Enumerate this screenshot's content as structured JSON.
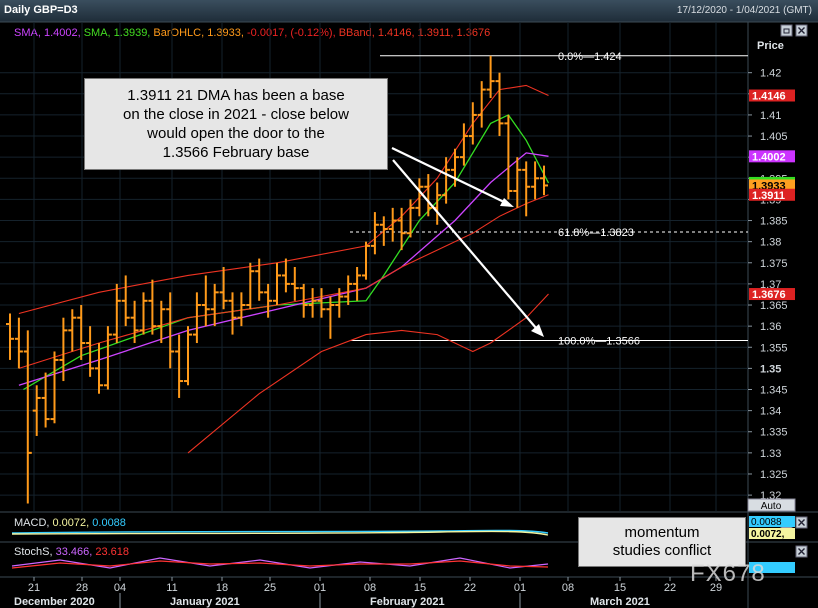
{
  "window": {
    "title": "Daily GBP=D3",
    "date_range": "17/12/2020 - 1/04/2021 (GMT)",
    "auto_label": "Auto"
  },
  "legend": [
    {
      "text": "SMA, 1.4002,",
      "color": "#cc44ff"
    },
    {
      "text": "SMA, 1.3939,",
      "color": "#44dd22"
    },
    {
      "text": "BarOHLC, 1.3933,",
      "color": "#ff9a1a"
    },
    {
      "text": "-0.0017, (-0.12%),",
      "color": "#ee2222"
    },
    {
      "text": "BBand, 1.4146, 1.3911, 1.3676",
      "color": "#ee3322"
    }
  ],
  "callouts": {
    "main_lines": [
      "1.3911 21 DMA has been a base",
      "on the close in 2021 - close below",
      "would open the door to the",
      "1.3566 February base"
    ],
    "momentum_lines": [
      "momentum",
      "studies conflict"
    ]
  },
  "watermark": "FX678",
  "fib_labels": {
    "f0": "0.0%",
    "f0v": "1.424",
    "f618": "61.8%",
    "f618v": "1.3823",
    "f100": "100.0%",
    "f100v": "1.3566"
  },
  "macd": {
    "label": "MACD,",
    "v1": "0.0072,",
    "v2": "0.0088",
    "c1": "#f4f4a0",
    "c2": "#33ccff"
  },
  "stoch": {
    "label": "StochS,",
    "v1": "33.466,",
    "v2": "23.618",
    "c1": "#cc66ff",
    "c2": "#ff3333"
  },
  "chart_data": {
    "type": "line",
    "title": "Daily GBP=D3",
    "ylabel": "Price",
    "ylim": [
      1.316,
      1.432
    ],
    "yticks": [
      "1.42",
      "1.415",
      "1.41",
      "1.405",
      "1.4",
      "1.395",
      "1.39",
      "1.385",
      "1.38",
      "1.375",
      "1.37",
      "1.365",
      "1.36",
      "1.355",
      "1.35",
      "1.345",
      "1.34",
      "1.335",
      "1.33",
      "1.325",
      "1.32"
    ],
    "xticks": [
      "21",
      "28",
      "04",
      "11",
      "18",
      "25",
      "01",
      "08",
      "15",
      "22",
      "01",
      "08",
      "15",
      "22",
      "29"
    ],
    "months": [
      "December 2020",
      "January 2021",
      "February 2021",
      "March 2021"
    ],
    "price_badges": [
      {
        "value": 1.4146,
        "label": "1.4146",
        "bg": "#dd2222",
        "fg": "#ffffff"
      },
      {
        "value": 1.4002,
        "label": "1.4002",
        "bg": "#cc33ff",
        "fg": "#ffffff"
      },
      {
        "value": 1.3939,
        "label": "1.3939",
        "bg": "#33dd22",
        "fg": "#ffffff"
      },
      {
        "value": 1.3933,
        "label": "1.3933",
        "bg": "#ffa020",
        "fg": "#000000"
      },
      {
        "value": 1.3911,
        "label": "1.3911",
        "bg": "#dd2222",
        "fg": "#ffffff"
      },
      {
        "value": 1.3676,
        "label": "1.3676",
        "bg": "#dd2222",
        "fg": "#ffffff"
      }
    ],
    "fib_levels": [
      1.424,
      1.3823,
      1.3566
    ],
    "ohlc": [
      [
        1.3605,
        1.363,
        1.352,
        1.357
      ],
      [
        1.357,
        1.362,
        1.35,
        1.354
      ],
      [
        1.354,
        1.359,
        1.318,
        1.33
      ],
      [
        1.34,
        1.346,
        1.334,
        1.343
      ],
      [
        1.343,
        1.349,
        1.336,
        1.338
      ],
      [
        1.338,
        1.354,
        1.337,
        1.352
      ],
      [
        1.352,
        1.362,
        1.347,
        1.359
      ],
      [
        1.359,
        1.364,
        1.354,
        1.362
      ],
      [
        1.362,
        1.365,
        1.352,
        1.356
      ],
      [
        1.356,
        1.36,
        1.348,
        1.35
      ],
      [
        1.35,
        1.356,
        1.344,
        1.346
      ],
      [
        1.346,
        1.36,
        1.345,
        1.358
      ],
      [
        1.358,
        1.37,
        1.356,
        1.366
      ],
      [
        1.366,
        1.372,
        1.36,
        1.362
      ],
      [
        1.362,
        1.366,
        1.356,
        1.359
      ],
      [
        1.359,
        1.368,
        1.358,
        1.366
      ],
      [
        1.366,
        1.371,
        1.358,
        1.36
      ],
      [
        1.36,
        1.366,
        1.356,
        1.364
      ],
      [
        1.364,
        1.368,
        1.35,
        1.354
      ],
      [
        1.354,
        1.358,
        1.343,
        1.347
      ],
      [
        1.347,
        1.36,
        1.346,
        1.358
      ],
      [
        1.358,
        1.368,
        1.356,
        1.365
      ],
      [
        1.365,
        1.372,
        1.36,
        1.364
      ],
      [
        1.364,
        1.37,
        1.36,
        1.368
      ],
      [
        1.368,
        1.374,
        1.364,
        1.366
      ],
      [
        1.366,
        1.368,
        1.358,
        1.362
      ],
      [
        1.362,
        1.368,
        1.36,
        1.365
      ],
      [
        1.365,
        1.375,
        1.364,
        1.373
      ],
      [
        1.373,
        1.376,
        1.366,
        1.368
      ],
      [
        1.368,
        1.37,
        1.362,
        1.366
      ],
      [
        1.366,
        1.375,
        1.365,
        1.372
      ],
      [
        1.372,
        1.376,
        1.368,
        1.37
      ],
      [
        1.37,
        1.374,
        1.366,
        1.369
      ],
      [
        1.369,
        1.37,
        1.362,
        1.365
      ],
      [
        1.365,
        1.369,
        1.362,
        1.366
      ],
      [
        1.366,
        1.369,
        1.362,
        1.364
      ],
      [
        1.364,
        1.367,
        1.357,
        1.365
      ],
      [
        1.365,
        1.369,
        1.362,
        1.367
      ],
      [
        1.367,
        1.372,
        1.365,
        1.37
      ],
      [
        1.37,
        1.374,
        1.366,
        1.372
      ],
      [
        1.372,
        1.38,
        1.371,
        1.379
      ],
      [
        1.379,
        1.387,
        1.377,
        1.384
      ],
      [
        1.384,
        1.386,
        1.379,
        1.383
      ],
      [
        1.383,
        1.388,
        1.38,
        1.385
      ],
      [
        1.385,
        1.388,
        1.378,
        1.382
      ],
      [
        1.382,
        1.39,
        1.381,
        1.388
      ],
      [
        1.388,
        1.395,
        1.386,
        1.393
      ],
      [
        1.393,
        1.396,
        1.386,
        1.388
      ],
      [
        1.388,
        1.394,
        1.384,
        1.391
      ],
      [
        1.391,
        1.4,
        1.389,
        1.397
      ],
      [
        1.397,
        1.402,
        1.393,
        1.4
      ],
      [
        1.4,
        1.408,
        1.398,
        1.405
      ],
      [
        1.405,
        1.413,
        1.403,
        1.41
      ],
      [
        1.41,
        1.418,
        1.407,
        1.416
      ],
      [
        1.416,
        1.424,
        1.414,
        1.418
      ],
      [
        1.418,
        1.42,
        1.405,
        1.408
      ],
      [
        1.408,
        1.41,
        1.39,
        1.392
      ],
      [
        1.392,
        1.4,
        1.388,
        1.397
      ],
      [
        1.397,
        1.399,
        1.386,
        1.393
      ],
      [
        1.393,
        1.399,
        1.39,
        1.395
      ],
      [
        1.395,
        1.398,
        1.391,
        1.3933
      ]
    ],
    "series": [
      {
        "role": "sma-fast",
        "color": "#33dd22",
        "width": 1.3,
        "x": [
          1.5,
          8,
          20,
          30,
          40,
          42,
          46,
          50,
          54,
          56,
          58,
          60.5
        ],
        "y": [
          1.345,
          1.353,
          1.362,
          1.365,
          1.366,
          1.372,
          1.385,
          1.394,
          1.408,
          1.41,
          1.404,
          1.3939
        ]
      },
      {
        "role": "sma-slow",
        "color": "#cc44ff",
        "width": 1.3,
        "x": [
          1,
          10,
          20,
          30,
          40,
          44,
          50,
          54,
          58,
          60.5
        ],
        "y": [
          1.346,
          1.352,
          1.359,
          1.364,
          1.369,
          1.374,
          1.385,
          1.394,
          1.401,
          1.4002
        ]
      },
      {
        "role": "bband-upper",
        "color": "#ee3322",
        "width": 1.1,
        "x": [
          1,
          10,
          20,
          30,
          40,
          44,
          48,
          52,
          55,
          58,
          60.5
        ],
        "y": [
          1.363,
          1.368,
          1.372,
          1.375,
          1.379,
          1.386,
          1.395,
          1.408,
          1.416,
          1.417,
          1.4146
        ]
      },
      {
        "role": "bband-mid",
        "color": "#ee3322",
        "width": 1.1,
        "x": [
          1,
          10,
          20,
          30,
          40,
          44,
          48,
          52,
          55,
          58,
          60.5
        ],
        "y": [
          1.35,
          1.356,
          1.362,
          1.365,
          1.369,
          1.374,
          1.378,
          1.382,
          1.386,
          1.389,
          1.3911
        ]
      },
      {
        "role": "bband-lower",
        "color": "#ee3322",
        "width": 1.1,
        "x": [
          20,
          28,
          35,
          40,
          44,
          48,
          52,
          54,
          56,
          58,
          60.5
        ],
        "y": [
          1.33,
          1.344,
          1.354,
          1.358,
          1.359,
          1.358,
          1.354,
          1.356,
          1.359,
          1.362,
          1.3676
        ]
      }
    ]
  }
}
